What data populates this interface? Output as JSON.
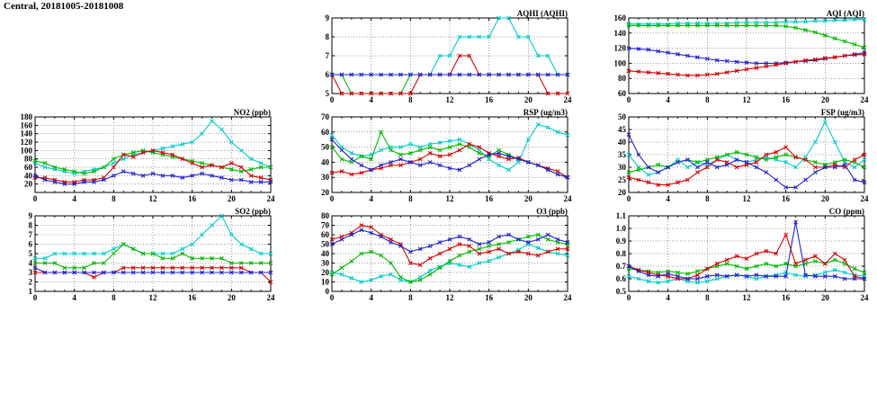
{
  "title": "Central, 20181005-20181008",
  "xticks": [
    0,
    4,
    8,
    12,
    16,
    20,
    24
  ],
  "xlim": [
    0,
    24
  ],
  "series_colors": {
    "red": "#d40000",
    "green": "#00b800",
    "blue": "#2222cc",
    "cyan": "#00cccc"
  },
  "chart_data": [
    {
      "id": "aqhi",
      "type": "line",
      "title": "AQHI (AQHI)",
      "ylim": [
        5,
        9
      ],
      "yticks": [
        5,
        6,
        7,
        8,
        9
      ],
      "series": [
        {
          "name": "cyan",
          "color": "#00cccc",
          "values": [
            6,
            6,
            6,
            6,
            6,
            6,
            6,
            6,
            6,
            6,
            6,
            7,
            7,
            8,
            8,
            8,
            8,
            9,
            9,
            8,
            8,
            7,
            7,
            6,
            6
          ]
        },
        {
          "name": "green",
          "color": "#00b800",
          "values": [
            6,
            6,
            5,
            5,
            5,
            5,
            5,
            5,
            6,
            6,
            6,
            6,
            6,
            6,
            6,
            6,
            6,
            6,
            6,
            6,
            6,
            6,
            6,
            6,
            6
          ]
        },
        {
          "name": "red",
          "color": "#d40000",
          "values": [
            6,
            5,
            5,
            5,
            5,
            5,
            5,
            5,
            5,
            6,
            6,
            6,
            6,
            7,
            7,
            6,
            6,
            6,
            6,
            6,
            6,
            6,
            5,
            5,
            5
          ]
        },
        {
          "name": "blue",
          "color": "#2222cc",
          "values": [
            6,
            6,
            6,
            6,
            6,
            6,
            6,
            6,
            6,
            6,
            6,
            6,
            6,
            6,
            6,
            6,
            6,
            6,
            6,
            6,
            6,
            6,
            6,
            6,
            6
          ]
        }
      ]
    },
    {
      "id": "aqi",
      "type": "line",
      "title": "AQI (AQI)",
      "ylim": [
        60,
        160
      ],
      "yticks": [
        60,
        80,
        100,
        120,
        140,
        160
      ],
      "series": [
        {
          "name": "cyan",
          "color": "#00cccc",
          "values": [
            152,
            152,
            152,
            152,
            152,
            153,
            153,
            153,
            153,
            153,
            153,
            154,
            154,
            154,
            154,
            154,
            155,
            155,
            155,
            156,
            156,
            157,
            157,
            158,
            158
          ]
        },
        {
          "name": "green",
          "color": "#00b800",
          "values": [
            150,
            150,
            150,
            150,
            150,
            150,
            150,
            150,
            150,
            150,
            150,
            150,
            150,
            150,
            150,
            150,
            149,
            147,
            144,
            141,
            137,
            133,
            129,
            125,
            121
          ]
        },
        {
          "name": "blue",
          "color": "#2222cc",
          "values": [
            120,
            119,
            118,
            116,
            114,
            112,
            110,
            108,
            106,
            104,
            103,
            102,
            101,
            100,
            100,
            100,
            101,
            102,
            103,
            104,
            106,
            108,
            110,
            112,
            114
          ]
        },
        {
          "name": "red",
          "color": "#d40000",
          "values": [
            90,
            89,
            88,
            87,
            86,
            85,
            84,
            84,
            85,
            86,
            88,
            90,
            92,
            94,
            96,
            98,
            100,
            102,
            104,
            105,
            107,
            108,
            110,
            111,
            112
          ]
        }
      ]
    },
    {
      "id": "no2",
      "type": "line",
      "title": "NO2 (ppb)",
      "ylim": [
        0,
        180
      ],
      "yticks": [
        20,
        40,
        60,
        80,
        100,
        120,
        140,
        160,
        180
      ],
      "series": [
        {
          "name": "cyan",
          "color": "#00cccc",
          "values": [
            70,
            60,
            55,
            50,
            45,
            50,
            55,
            60,
            70,
            80,
            90,
            95,
            100,
            105,
            110,
            115,
            120,
            140,
            170,
            150,
            120,
            100,
            80,
            70,
            60
          ]
        },
        {
          "name": "green",
          "color": "#00b800",
          "values": [
            75,
            70,
            60,
            55,
            50,
            45,
            50,
            60,
            80,
            90,
            95,
            100,
            95,
            90,
            85,
            80,
            75,
            70,
            65,
            60,
            55,
            50,
            55,
            60,
            60
          ]
        },
        {
          "name": "red",
          "color": "#d40000",
          "values": [
            35,
            35,
            30,
            25,
            25,
            30,
            30,
            35,
            60,
            90,
            85,
            95,
            100,
            95,
            90,
            80,
            70,
            60,
            65,
            60,
            70,
            60,
            40,
            35,
            30
          ]
        },
        {
          "name": "blue",
          "color": "#2222cc",
          "values": [
            40,
            30,
            25,
            20,
            20,
            25,
            25,
            30,
            40,
            50,
            45,
            40,
            45,
            40,
            40,
            35,
            40,
            45,
            40,
            35,
            30,
            30,
            25,
            25,
            25
          ]
        }
      ]
    },
    {
      "id": "rsp",
      "type": "line",
      "title": "RSP (ug/m3)",
      "ylim": [
        20,
        70
      ],
      "yticks": [
        20,
        30,
        40,
        50,
        60,
        70
      ],
      "series": [
        {
          "name": "cyan",
          "color": "#00cccc",
          "values": [
            58,
            50,
            46,
            44,
            45,
            48,
            50,
            50,
            52,
            50,
            52,
            53,
            54,
            55,
            52,
            48,
            42,
            38,
            35,
            40,
            55,
            65,
            63,
            60,
            58
          ]
        },
        {
          "name": "green",
          "color": "#00b800",
          "values": [
            50,
            42,
            40,
            44,
            42,
            60,
            48,
            45,
            46,
            48,
            50,
            48,
            50,
            52,
            50,
            46,
            44,
            48,
            45,
            42,
            40,
            38,
            35,
            32,
            30
          ]
        },
        {
          "name": "red",
          "color": "#d40000",
          "values": [
            33,
            34,
            32,
            33,
            35,
            36,
            38,
            38,
            40,
            42,
            46,
            44,
            45,
            48,
            52,
            50,
            46,
            44,
            42,
            43,
            40,
            38,
            36,
            34,
            30
          ]
        },
        {
          "name": "blue",
          "color": "#2222cc",
          "values": [
            55,
            48,
            42,
            38,
            35,
            38,
            40,
            42,
            40,
            38,
            40,
            38,
            36,
            35,
            38,
            42,
            45,
            46,
            44,
            42,
            40,
            38,
            35,
            32,
            30
          ]
        }
      ]
    },
    {
      "id": "fsp",
      "type": "line",
      "title": "FSP (ug/m3)",
      "ylim": [
        20,
        50
      ],
      "yticks": [
        20,
        25,
        30,
        35,
        40,
        45,
        50
      ],
      "series": [
        {
          "name": "cyan",
          "color": "#00cccc",
          "values": [
            35,
            30,
            27,
            28,
            30,
            33,
            30,
            32,
            31,
            33,
            35,
            33,
            32,
            33,
            34,
            33,
            32,
            30,
            34,
            40,
            48,
            40,
            32,
            30,
            33
          ]
        },
        {
          "name": "green",
          "color": "#00b800",
          "values": [
            28,
            29,
            30,
            31,
            30,
            32,
            33,
            32,
            33,
            34,
            35,
            36,
            35,
            34,
            33,
            34,
            35,
            34,
            33,
            32,
            31,
            32,
            33,
            32,
            30
          ]
        },
        {
          "name": "red",
          "color": "#d40000",
          "values": [
            26,
            25,
            24,
            23,
            23,
            24,
            25,
            28,
            30,
            33,
            32,
            30,
            31,
            32,
            35,
            36,
            38,
            34,
            33,
            30,
            30,
            31,
            30,
            33,
            35
          ]
        },
        {
          "name": "blue",
          "color": "#2222cc",
          "values": [
            43,
            35,
            30,
            28,
            30,
            32,
            33,
            30,
            32,
            30,
            31,
            33,
            32,
            30,
            28,
            25,
            22,
            22,
            25,
            28,
            30,
            30,
            31,
            25,
            24
          ]
        }
      ]
    },
    {
      "id": "so2",
      "type": "line",
      "title": "SO2 (ppb)",
      "ylim": [
        1,
        9
      ],
      "yticks": [
        1,
        2,
        3,
        4,
        5,
        6,
        7,
        8,
        9
      ],
      "series": [
        {
          "name": "cyan",
          "color": "#00cccc",
          "values": [
            4.5,
            4.5,
            5,
            5,
            5,
            5,
            5,
            5,
            5.5,
            6,
            5.5,
            5,
            5,
            5,
            5,
            5.5,
            6,
            7,
            8,
            9,
            7,
            6,
            5.5,
            5,
            5
          ]
        },
        {
          "name": "green",
          "color": "#00b800",
          "values": [
            4,
            4,
            4,
            3.5,
            3.5,
            3.5,
            4,
            4,
            5,
            6,
            5.5,
            5,
            5,
            4.5,
            4.5,
            5,
            4.5,
            4.5,
            4.5,
            4.5,
            4,
            4,
            4,
            4,
            4
          ]
        },
        {
          "name": "red",
          "color": "#d40000",
          "values": [
            3,
            3,
            3,
            3,
            3,
            3,
            2.5,
            3,
            3,
            3.5,
            3.5,
            3.5,
            3.5,
            3.5,
            3.5,
            3.5,
            3.5,
            3.5,
            3.5,
            3.5,
            3.5,
            3.5,
            3,
            3,
            2
          ]
        },
        {
          "name": "blue",
          "color": "#2222cc",
          "values": [
            3.5,
            3,
            3,
            3,
            3,
            3,
            3,
            3,
            3,
            3,
            3,
            3,
            3,
            3,
            3,
            3,
            3,
            3,
            3,
            3,
            3,
            3,
            3,
            3,
            3
          ]
        }
      ]
    },
    {
      "id": "o3",
      "type": "line",
      "title": "O3 (ppb)",
      "ylim": [
        0,
        80
      ],
      "yticks": [
        0,
        10,
        20,
        30,
        40,
        50,
        60,
        70,
        80
      ],
      "series": [
        {
          "name": "cyan",
          "color": "#00cccc",
          "values": [
            20,
            18,
            14,
            10,
            12,
            16,
            18,
            12,
            10,
            15,
            22,
            26,
            30,
            28,
            26,
            30,
            32,
            36,
            40,
            44,
            50,
            46,
            42,
            40,
            38
          ]
        },
        {
          "name": "green",
          "color": "#00b800",
          "values": [
            18,
            25,
            32,
            40,
            42,
            38,
            30,
            15,
            10,
            12,
            18,
            25,
            32,
            38,
            42,
            45,
            48,
            50,
            52,
            55,
            58,
            60,
            55,
            52,
            50
          ]
        },
        {
          "name": "red",
          "color": "#d40000",
          "values": [
            55,
            58,
            62,
            70,
            68,
            60,
            55,
            50,
            30,
            28,
            35,
            40,
            45,
            50,
            48,
            40,
            42,
            45,
            40,
            42,
            40,
            38,
            42,
            45,
            45
          ]
        },
        {
          "name": "blue",
          "color": "#2222cc",
          "values": [
            50,
            55,
            60,
            65,
            62,
            58,
            52,
            48,
            42,
            45,
            48,
            52,
            55,
            58,
            55,
            50,
            52,
            58,
            60,
            55,
            52,
            55,
            60,
            55,
            52
          ]
        }
      ]
    },
    {
      "id": "co",
      "type": "line",
      "title": "CO (ppm)",
      "ylim": [
        0.5,
        1.1
      ],
      "yticks": [
        0.5,
        0.6,
        0.7,
        0.8,
        0.9,
        1.0,
        1.1
      ],
      "ytick_labels": [
        "0.5",
        "0.6",
        "0.7",
        "0.8",
        "0.9",
        "1.0",
        "1.1"
      ],
      "series": [
        {
          "name": "cyan",
          "color": "#00cccc",
          "values": [
            0.62,
            0.6,
            0.58,
            0.57,
            0.58,
            0.6,
            0.58,
            0.57,
            0.58,
            0.6,
            0.62,
            0.63,
            0.62,
            0.6,
            0.62,
            0.63,
            0.65,
            0.63,
            0.62,
            0.63,
            0.65,
            0.67,
            0.65,
            0.63,
            0.62
          ]
        },
        {
          "name": "green",
          "color": "#00b800",
          "values": [
            0.68,
            0.67,
            0.66,
            0.65,
            0.66,
            0.65,
            0.64,
            0.66,
            0.68,
            0.7,
            0.72,
            0.7,
            0.68,
            0.7,
            0.72,
            0.7,
            0.72,
            0.7,
            0.72,
            0.74,
            0.72,
            0.75,
            0.72,
            0.68,
            0.65
          ]
        },
        {
          "name": "red",
          "color": "#d40000",
          "values": [
            0.7,
            0.67,
            0.65,
            0.63,
            0.62,
            0.6,
            0.6,
            0.63,
            0.68,
            0.72,
            0.75,
            0.78,
            0.76,
            0.8,
            0.82,
            0.8,
            0.95,
            0.72,
            0.75,
            0.78,
            0.72,
            0.8,
            0.75,
            0.62,
            0.6
          ]
        },
        {
          "name": "blue",
          "color": "#2222cc",
          "values": [
            0.7,
            0.66,
            0.63,
            0.62,
            0.64,
            0.62,
            0.6,
            0.6,
            0.62,
            0.63,
            0.62,
            0.63,
            0.62,
            0.63,
            0.62,
            0.62,
            0.62,
            1.05,
            0.63,
            0.62,
            0.62,
            0.62,
            0.6,
            0.6,
            0.6
          ]
        }
      ]
    }
  ]
}
